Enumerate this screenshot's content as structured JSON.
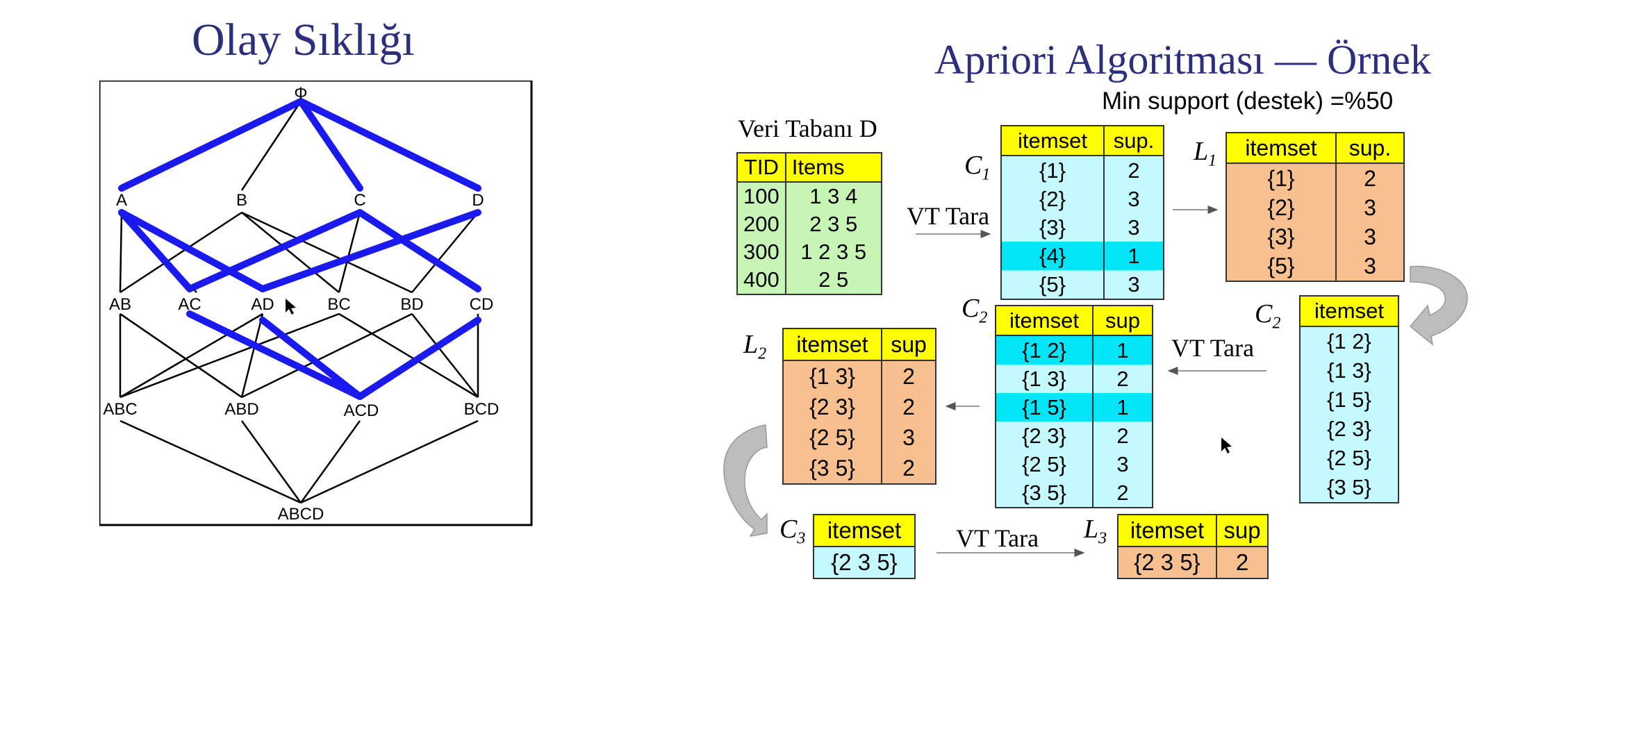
{
  "left_title": "Olay Sıklığı",
  "right_title": "Apriori Algoritması — Örnek",
  "min_support": "Min support (destek) =%50",
  "lattice": {
    "nodes": {
      "phi": "Φ",
      "A": "A",
      "B": "B",
      "C": "C",
      "D": "D",
      "AB": "AB",
      "AC": "AC",
      "AD": "AD",
      "BC": "BC",
      "BD": "BD",
      "CD": "CD",
      "ABC": "ABC",
      "ABD": "ABD",
      "ACD": "ACD",
      "BCD": "BCD",
      "ABCD": "ABCD"
    },
    "highlight_color": "#1a1aee"
  },
  "db": {
    "caption": "Veri Tabanı D",
    "headers": [
      "TID",
      "Items"
    ],
    "rows": [
      [
        "100",
        "1 3 4"
      ],
      [
        "200",
        "2 3 5"
      ],
      [
        "300",
        "1 2 3 5"
      ],
      [
        "400",
        "2 5"
      ]
    ]
  },
  "scan_label": "VT Tara",
  "c1": {
    "label": "C",
    "sub": "1",
    "headers": [
      "itemset",
      "sup."
    ],
    "rows": [
      [
        "{1}",
        "2"
      ],
      [
        "{2}",
        "3"
      ],
      [
        "{3}",
        "3"
      ],
      [
        "{4}",
        "1"
      ],
      [
        "{5}",
        "3"
      ]
    ]
  },
  "l1": {
    "label": "L",
    "sub": "1",
    "headers": [
      "itemset",
      "sup."
    ],
    "rows": [
      [
        "{1}",
        "2"
      ],
      [
        "{2}",
        "3"
      ],
      [
        "{3}",
        "3"
      ],
      [
        "{5}",
        "3"
      ]
    ]
  },
  "c2a": {
    "label": "C",
    "sub": "2",
    "headers": [
      "itemset"
    ],
    "rows": [
      [
        "{1 2}"
      ],
      [
        "{1 3}"
      ],
      [
        "{1 5}"
      ],
      [
        "{2 3}"
      ],
      [
        "{2 5}"
      ],
      [
        "{3 5}"
      ]
    ]
  },
  "c2b": {
    "label": "C",
    "sub": "2",
    "headers": [
      "itemset",
      "sup"
    ],
    "rows": [
      [
        "{1 2}",
        "1"
      ],
      [
        "{1 3}",
        "2"
      ],
      [
        "{1 5}",
        "1"
      ],
      [
        "{2 3}",
        "2"
      ],
      [
        "{2 5}",
        "3"
      ],
      [
        "{3 5}",
        "2"
      ]
    ]
  },
  "l2": {
    "label": "L",
    "sub": "2",
    "headers": [
      "itemset",
      "sup"
    ],
    "rows": [
      [
        "{1 3}",
        "2"
      ],
      [
        "{2 3}",
        "2"
      ],
      [
        "{2 5}",
        "3"
      ],
      [
        "{3 5}",
        "2"
      ]
    ]
  },
  "c3": {
    "label": "C",
    "sub": "3",
    "headers": [
      "itemset"
    ],
    "rows": [
      [
        "{2 3 5}"
      ]
    ]
  },
  "l3": {
    "label": "L",
    "sub": "3",
    "headers": [
      "itemset",
      "sup"
    ],
    "rows": [
      [
        "{2 3 5}",
        "2"
      ]
    ]
  },
  "colors": {
    "header": "#ffff00",
    "candidate": "#c4faff",
    "pruned": "#00e5f7",
    "frequent": "#f9c08f",
    "database": "#c6f5b5",
    "title": "#2b2f7e"
  }
}
